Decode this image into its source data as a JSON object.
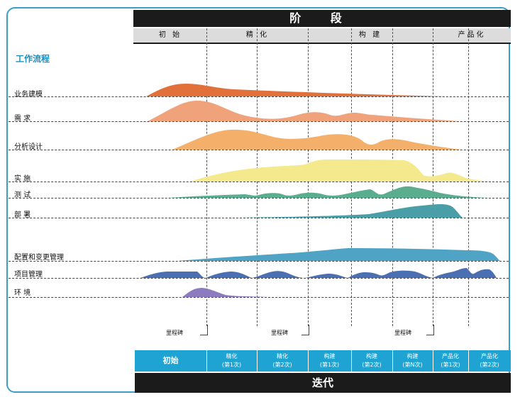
{
  "header": {
    "title": "阶   段"
  },
  "phases": [
    "初 始",
    "精 化",
    "构 建",
    "产品化"
  ],
  "workflow_heading": "工作流程",
  "workflows": [
    "业务建模",
    "需   求",
    "分析设计",
    "实   施",
    "测   试",
    "部   署",
    "配置和变更管理",
    "项目管理",
    "环   境"
  ],
  "milestone_label": "里程碑",
  "iterations": [
    {
      "name": "初始",
      "sub": ""
    },
    {
      "name": "精化",
      "sub": "(第1次)"
    },
    {
      "name": "精化",
      "sub": "(第2次)"
    },
    {
      "name": "构建",
      "sub": "(第1次)"
    },
    {
      "name": "构建",
      "sub": "(第2次)"
    },
    {
      "name": "构建",
      "sub": "(第N次)"
    },
    {
      "name": "产品化",
      "sub": "(第1次)"
    },
    {
      "name": "产品化",
      "sub": "(第2次)"
    }
  ],
  "footer": {
    "title": "迭代"
  },
  "colors": {
    "business": "#e2703a",
    "requirements": "#f0a27a",
    "analysis": "#f4b06a",
    "implementation": "#f5e98e",
    "test": "#5aad8f",
    "deploy": "#4a9ea8",
    "config": "#4fa3c4",
    "project": "#4b6fb3",
    "environment": "#8d7bbf",
    "accent": "#1ea3d3"
  }
}
